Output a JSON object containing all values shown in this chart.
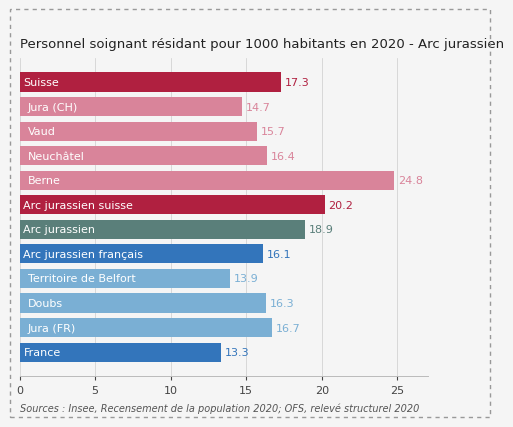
{
  "title": "Personnel soignant résidant pour 1000 habitants en 2020 - Arc jurassien",
  "categories": [
    "France",
    "Jura (FR)",
    "Doubs",
    "Territoire de Belfort",
    "Arc jurassien français",
    "Arc jurassien",
    "Arc jurassien suisse",
    "Berne",
    "Neuchâtel",
    "Vaud",
    "Jura (CH)",
    "Suisse"
  ],
  "values": [
    13.3,
    16.7,
    16.3,
    13.9,
    16.1,
    18.9,
    20.2,
    24.8,
    16.4,
    15.7,
    14.7,
    17.3
  ],
  "bar_colors": [
    "#3375bb",
    "#7aafd4",
    "#7aafd4",
    "#7aafd4",
    "#3375bb",
    "#5a7f7a",
    "#b02040",
    "#d9849a",
    "#d9849a",
    "#d9849a",
    "#d9849a",
    "#b02040"
  ],
  "value_colors": [
    "#3375bb",
    "#7aafd4",
    "#7aafd4",
    "#7aafd4",
    "#3375bb",
    "#5a7f7a",
    "#b02040",
    "#d9849a",
    "#d9849a",
    "#d9849a",
    "#d9849a",
    "#b02040"
  ],
  "indented": [
    false,
    true,
    true,
    true,
    false,
    false,
    false,
    true,
    true,
    true,
    true,
    false
  ],
  "xlim": [
    0,
    27
  ],
  "xticks": [
    0,
    5,
    10,
    15,
    20,
    25
  ],
  "footnote": "Sources : Insee, Recensement de la population 2020; OFS, relevé structurel 2020",
  "background_color": "#f5f5f5",
  "title_fontsize": 9.5,
  "bar_label_fontsize": 8.0,
  "cat_label_fontsize": 8.0,
  "tick_fontsize": 8.0,
  "footnote_fontsize": 7.0
}
